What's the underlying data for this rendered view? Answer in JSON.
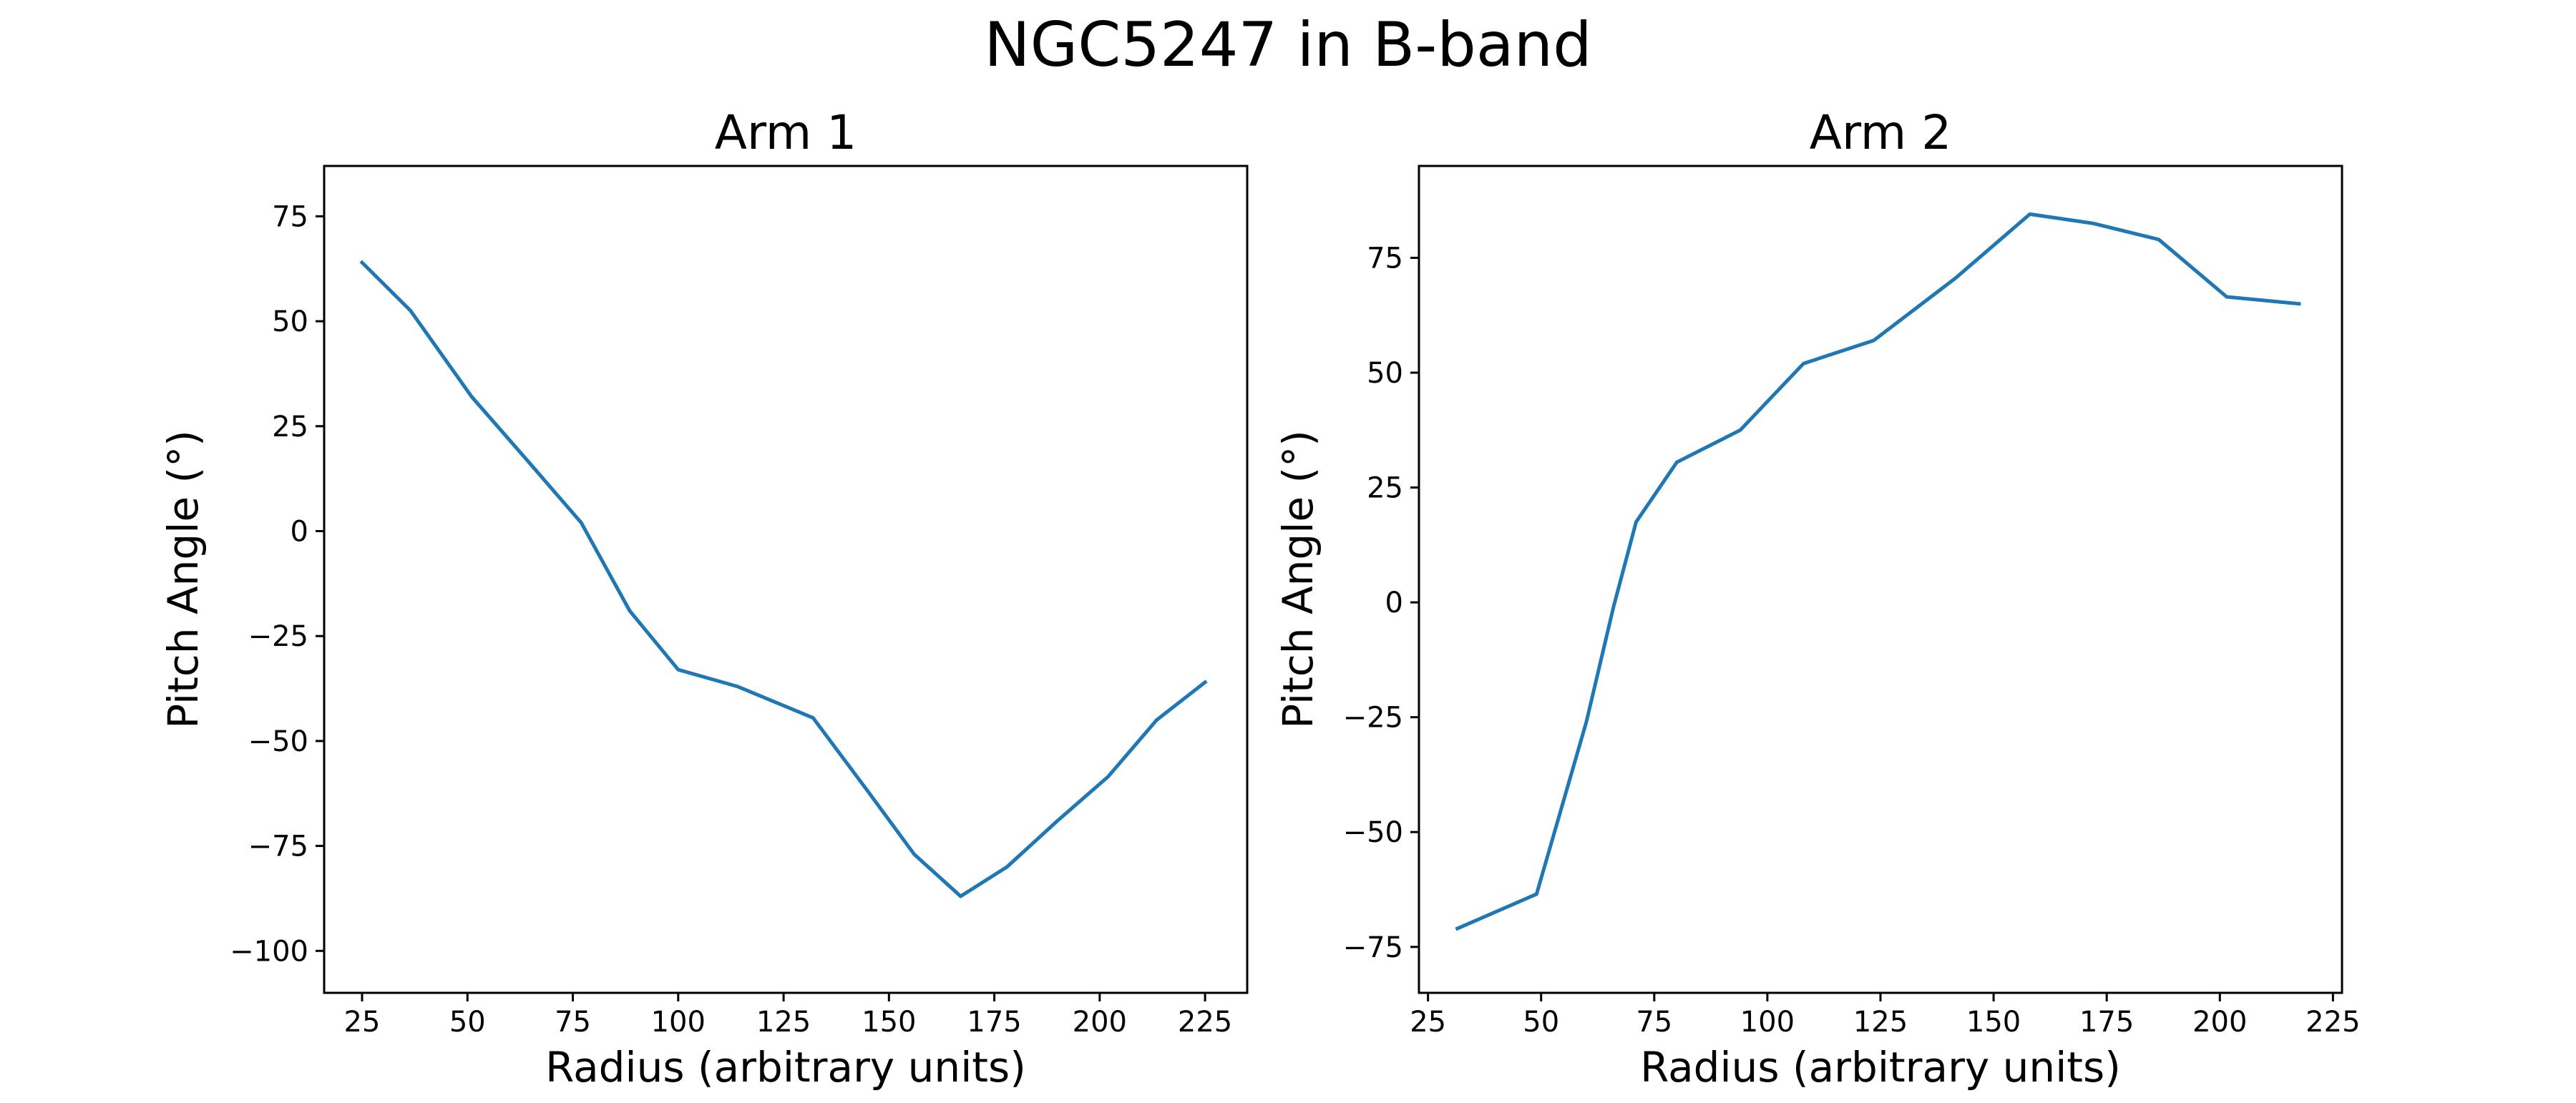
{
  "figure_title": "NGC5247 in B-band",
  "chart_data": [
    {
      "type": "line",
      "title": "Arm 1",
      "xlabel": "Radius (arbitrary units)",
      "ylabel": "Pitch Angle (°)",
      "xlim": [
        16,
        235
      ],
      "ylim": [
        -110,
        87
      ],
      "xticks": [
        25,
        50,
        75,
        100,
        125,
        150,
        175,
        200,
        225
      ],
      "yticks": [
        -100,
        -75,
        -50,
        -25,
        0,
        25,
        50,
        75
      ],
      "grid": false,
      "series": [
        {
          "color": "#1f77b4",
          "x": [
            25,
            36.5,
            51,
            64.5,
            77,
            88.5,
            100,
            114,
            132,
            145,
            156,
            167,
            178,
            190,
            202,
            213.5,
            225
          ],
          "y": [
            64,
            52.5,
            32,
            16.5,
            2,
            -19,
            -33,
            -37,
            -44.5,
            -62,
            -77,
            -87,
            -80,
            -69,
            -58.5,
            -45,
            -36
          ]
        }
      ]
    },
    {
      "type": "line",
      "title": "Arm 2",
      "xlabel": "Radius (arbitrary units)",
      "ylabel": "Pitch Angle (°)",
      "xlim": [
        23,
        227
      ],
      "ylim": [
        -85,
        95
      ],
      "xticks": [
        25,
        50,
        75,
        100,
        125,
        150,
        175,
        200,
        225
      ],
      "yticks": [
        -75,
        -50,
        -25,
        0,
        25,
        50,
        75
      ],
      "grid": false,
      "series": [
        {
          "color": "#1f77b4",
          "x": [
            31.5,
            49,
            60,
            66,
            71,
            80,
            94,
            108,
            123.5,
            141.5,
            158,
            172,
            186.5,
            201.5,
            217.5
          ],
          "y": [
            -71,
            -63.5,
            -26,
            -1,
            17.5,
            30.5,
            37.5,
            52,
            57,
            70.5,
            84.5,
            82.5,
            79,
            66.5,
            65
          ]
        }
      ]
    }
  ]
}
